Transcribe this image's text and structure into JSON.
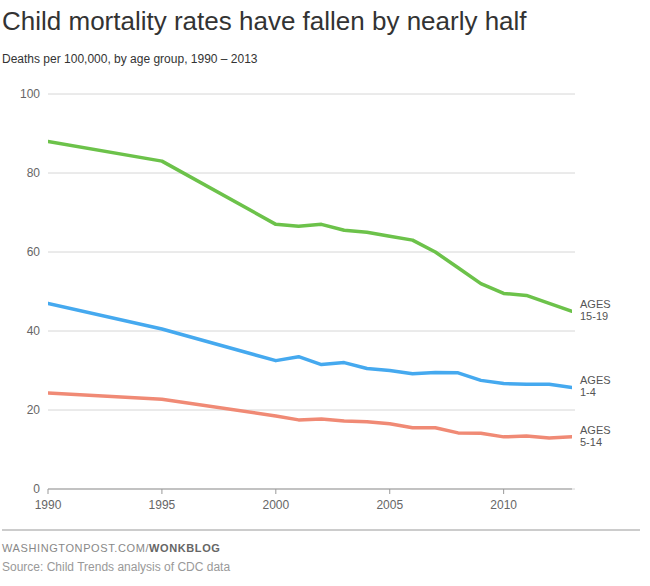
{
  "chart_data": {
    "type": "line",
    "title": "Child mortality rates have fallen by nearly half",
    "subtitle": "Deaths per 100,000, by age group, 1990 – 2013",
    "footer": "WASHINGTONPOST.COM/WONKBLOG",
    "source": "Source: Child Trends analysis of CDC data",
    "x": [
      1990,
      1995,
      2000,
      2001,
      2002,
      2003,
      2004,
      2005,
      2006,
      2007,
      2008,
      2009,
      2010,
      2011,
      2012,
      2013
    ],
    "series": [
      {
        "name": "AGES 15-19",
        "color": "#6cc24a",
        "values": [
          88,
          83,
          67,
          66.5,
          67,
          65.5,
          65,
          64,
          63,
          60,
          56,
          52,
          49.5,
          49,
          47,
          45
        ]
      },
      {
        "name": "AGES 1-4",
        "color": "#45a9ef",
        "values": [
          47,
          40.5,
          32.5,
          33.5,
          31.5,
          32,
          30.5,
          30,
          29.2,
          29.5,
          29.4,
          27.5,
          26.7,
          26.5,
          26.5,
          25.7
        ]
      },
      {
        "name": "AGES 5-14",
        "color": "#f08a75",
        "values": [
          24.3,
          22.7,
          18.5,
          17.5,
          17.7,
          17.2,
          17,
          16.5,
          15.5,
          15.5,
          14.2,
          14.1,
          13.2,
          13.4,
          12.9,
          13.2
        ]
      }
    ],
    "xlim": [
      1990,
      2013
    ],
    "xticks": [
      1990,
      1995,
      2000,
      2005,
      2010
    ],
    "ylim": [
      0,
      100
    ],
    "yticks": [
      0,
      20,
      40,
      60,
      80,
      100
    ],
    "grid": true
  }
}
